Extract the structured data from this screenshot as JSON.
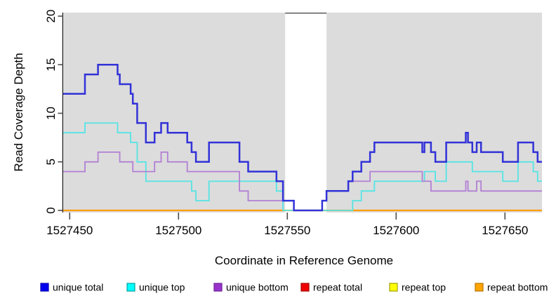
{
  "chart_data": {
    "type": "line",
    "subtype": "step-coverage",
    "title": "",
    "xlabel": "Coordinate in Reference Genome",
    "ylabel": "Read Coverage Depth",
    "xlim": [
      1527447,
      1527667
    ],
    "ylim": [
      0,
      20
    ],
    "x_ticks": [
      1527450,
      1527500,
      1527550,
      1527600,
      1527650
    ],
    "y_ticks": [
      0,
      5,
      10,
      15,
      20
    ],
    "grid": false,
    "plot_bg": "#DCDCDC",
    "gap_region": {
      "start": 1527549,
      "end": 1527568,
      "color": "#FFFFFF"
    },
    "series": [
      {
        "name": "repeat total",
        "color": "#DD0000",
        "width": 2.0,
        "steps": [
          [
            1527447,
            0
          ]
        ]
      },
      {
        "name": "repeat top",
        "color": "#FFFF00",
        "width": 2.0,
        "steps": [
          [
            1527447,
            0
          ]
        ]
      },
      {
        "name": "repeat bottom",
        "color": "#FF9E00",
        "width": 2.2,
        "steps": [
          [
            1527447,
            0
          ]
        ]
      },
      {
        "name": "unique top",
        "color": "#55E4E4",
        "width": 1.8,
        "steps": [
          [
            1527447,
            8
          ],
          [
            1527457,
            9
          ],
          [
            1527472,
            8
          ],
          [
            1527478,
            7
          ],
          [
            1527481,
            5
          ],
          [
            1527485,
            3
          ],
          [
            1527506,
            2
          ],
          [
            1527508,
            1
          ],
          [
            1527514,
            3
          ],
          [
            1527545,
            2
          ],
          [
            1527548,
            0
          ],
          [
            1527580,
            1
          ],
          [
            1527584,
            2
          ],
          [
            1527590,
            3
          ],
          [
            1527613,
            4
          ],
          [
            1527618,
            3
          ],
          [
            1527623,
            5
          ],
          [
            1527635,
            4
          ],
          [
            1527649,
            3
          ],
          [
            1527656,
            5
          ],
          [
            1527663,
            4
          ],
          [
            1527665,
            3
          ]
        ]
      },
      {
        "name": "unique bottom",
        "color": "#B27FD4",
        "width": 1.8,
        "steps": [
          [
            1527447,
            4
          ],
          [
            1527457,
            5
          ],
          [
            1527463,
            6
          ],
          [
            1527473,
            5
          ],
          [
            1527479,
            4
          ],
          [
            1527489,
            5
          ],
          [
            1527492,
            6
          ],
          [
            1527495,
            5
          ],
          [
            1527504,
            4
          ],
          [
            1527528,
            2
          ],
          [
            1527532,
            1
          ],
          [
            1527553,
            0
          ],
          [
            1527566,
            1
          ],
          [
            1527568,
            2
          ],
          [
            1527578,
            3
          ],
          [
            1527588,
            4
          ],
          [
            1527612,
            3
          ],
          [
            1527616,
            2
          ],
          [
            1527632,
            3
          ],
          [
            1527633,
            2
          ],
          [
            1527637,
            3
          ],
          [
            1527639,
            2
          ]
        ]
      },
      {
        "name": "unique total",
        "color": "#3232D8",
        "width": 2.5,
        "steps": [
          [
            1527447,
            12
          ],
          [
            1527457,
            14
          ],
          [
            1527463,
            15
          ],
          [
            1527472,
            14
          ],
          [
            1527473,
            13
          ],
          [
            1527478,
            12
          ],
          [
            1527479,
            11
          ],
          [
            1527481,
            9
          ],
          [
            1527485,
            7
          ],
          [
            1527489,
            8
          ],
          [
            1527492,
            9
          ],
          [
            1527495,
            8
          ],
          [
            1527504,
            7
          ],
          [
            1527506,
            6
          ],
          [
            1527508,
            5
          ],
          [
            1527514,
            7
          ],
          [
            1527528,
            5
          ],
          [
            1527532,
            4
          ],
          [
            1527545,
            3
          ],
          [
            1527548,
            1
          ],
          [
            1527553,
            0
          ],
          [
            1527566,
            1
          ],
          [
            1527568,
            2
          ],
          [
            1527578,
            3
          ],
          [
            1527580,
            4
          ],
          [
            1527584,
            5
          ],
          [
            1527588,
            6
          ],
          [
            1527590,
            7
          ],
          [
            1527612,
            6
          ],
          [
            1527613,
            7
          ],
          [
            1527616,
            6
          ],
          [
            1527618,
            5
          ],
          [
            1527623,
            7
          ],
          [
            1527632,
            8
          ],
          [
            1527633,
            7
          ],
          [
            1527635,
            6
          ],
          [
            1527637,
            7
          ],
          [
            1527639,
            6
          ],
          [
            1527649,
            5
          ],
          [
            1527656,
            7
          ],
          [
            1527663,
            6
          ],
          [
            1527665,
            5
          ]
        ]
      }
    ],
    "legend_position": "bottom"
  },
  "legend": {
    "items": [
      {
        "label": "unique total",
        "fill": "#0000EE",
        "border": "#0000B8"
      },
      {
        "label": "unique top",
        "fill": "#00FFFF",
        "border": "#00A0A0"
      },
      {
        "label": "unique bottom",
        "fill": "#9933CC",
        "border": "#6E2496"
      },
      {
        "label": "repeat total",
        "fill": "#EE0000",
        "border": "#A80000"
      },
      {
        "label": "repeat top",
        "fill": "#FFFF00",
        "border": "#9F9F00"
      },
      {
        "label": "repeat bottom",
        "fill": "#FFA500",
        "border": "#B37400"
      }
    ]
  },
  "axes": {
    "x_label": "Coordinate in Reference Genome",
    "y_label": "Read Coverage Depth"
  },
  "colors": {
    "plot_background": "#DCDCDC",
    "gap_band": "#FFFFFF",
    "axis_line": "#1A1A1A",
    "tick_mark": "#4D4D4D",
    "text": "#000000"
  }
}
